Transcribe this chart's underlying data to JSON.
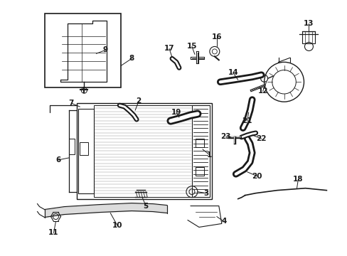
{
  "bg_color": "#ffffff",
  "line_color": "#1a1a1a",
  "label_color": "#1a1a1a",
  "fig_width": 4.89,
  "fig_height": 3.6,
  "dpi": 100
}
